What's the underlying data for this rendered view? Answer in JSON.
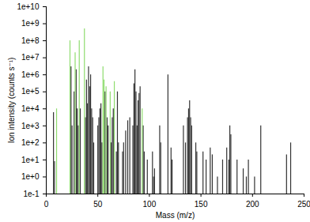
{
  "chart_data": {
    "type": "stick",
    "x_label": "Mass (m/z)",
    "y_label": "Ion intensity (counts s⁻¹)",
    "log": "y",
    "xlim": [
      0,
      250
    ],
    "xticks": [
      0,
      50,
      100,
      150,
      200,
      250
    ],
    "ylim": [
      0.1,
      10000000000
    ],
    "yticks": [
      {
        "value": 0.1,
        "label": "1e-1"
      },
      {
        "value": 1,
        "label": "1e+0"
      },
      {
        "value": 10,
        "label": "1e+1"
      },
      {
        "value": 100,
        "label": "1e+2"
      },
      {
        "value": 1000,
        "label": "1e+3"
      },
      {
        "value": 10000,
        "label": "1e+4"
      },
      {
        "value": 100000,
        "label": "1e+5"
      },
      {
        "value": 1000000,
        "label": "1e+6"
      },
      {
        "value": 10000000,
        "label": "1e+7"
      },
      {
        "value": 100000000,
        "label": "1e+8"
      },
      {
        "value": 1000000000,
        "label": "1e+9"
      },
      {
        "value": 10000000000,
        "label": "1e+10"
      }
    ],
    "series": [
      {
        "color": "#333333",
        "x": [
          7,
          8,
          24,
          25,
          27,
          29,
          30,
          31,
          33,
          38,
          39,
          40,
          41,
          42,
          43,
          44,
          45,
          46,
          50,
          51,
          52,
          53,
          54,
          57,
          59,
          60,
          63,
          64,
          65,
          68,
          69,
          70,
          74,
          75,
          77,
          79,
          81,
          84,
          85,
          86,
          87,
          88,
          89,
          90,
          91,
          94,
          95,
          98,
          103,
          104,
          105,
          110,
          111,
          118,
          121,
          122,
          133,
          135,
          137,
          138,
          139,
          140,
          141,
          145,
          146,
          152,
          155,
          159,
          161,
          166,
          171,
          175,
          177,
          178,
          179,
          185,
          191,
          194,
          196,
          202,
          208,
          233,
          237
        ],
        "values": [
          6000,
          8,
          3000000,
          1000,
          100000,
          2000000,
          10000,
          1000,
          10000,
          3000,
          500000,
          20000,
          3000000,
          200000,
          1000000,
          10000,
          3000,
          100,
          1000,
          3000,
          10000,
          20000,
          100,
          100000,
          3000,
          1000,
          100,
          3000,
          10000,
          30,
          100000,
          100,
          30,
          100,
          500,
          2000,
          3000,
          1000,
          300000,
          2000000,
          100000,
          1000,
          30000,
          80000,
          200000,
          1000,
          30,
          10,
          30,
          1,
          3,
          1000,
          100,
          1000000,
          50,
          10,
          1000,
          100,
          3000,
          10000,
          30000,
          3000,
          1000,
          100,
          30,
          30,
          10,
          50,
          20,
          1,
          10,
          50,
          10,
          1000,
          300,
          10,
          3,
          1,
          10,
          1,
          1000,
          20,
          100
        ]
      },
      {
        "color": "#8fdc6f",
        "x": [
          10,
          23,
          28,
          32,
          37,
          55,
          56,
          58,
          62,
          66,
          93
        ],
        "values": [
          10000,
          100000000,
          20000000,
          100000000,
          500000000,
          3000000,
          500000,
          200000,
          100000,
          400000,
          10000
        ]
      }
    ]
  }
}
